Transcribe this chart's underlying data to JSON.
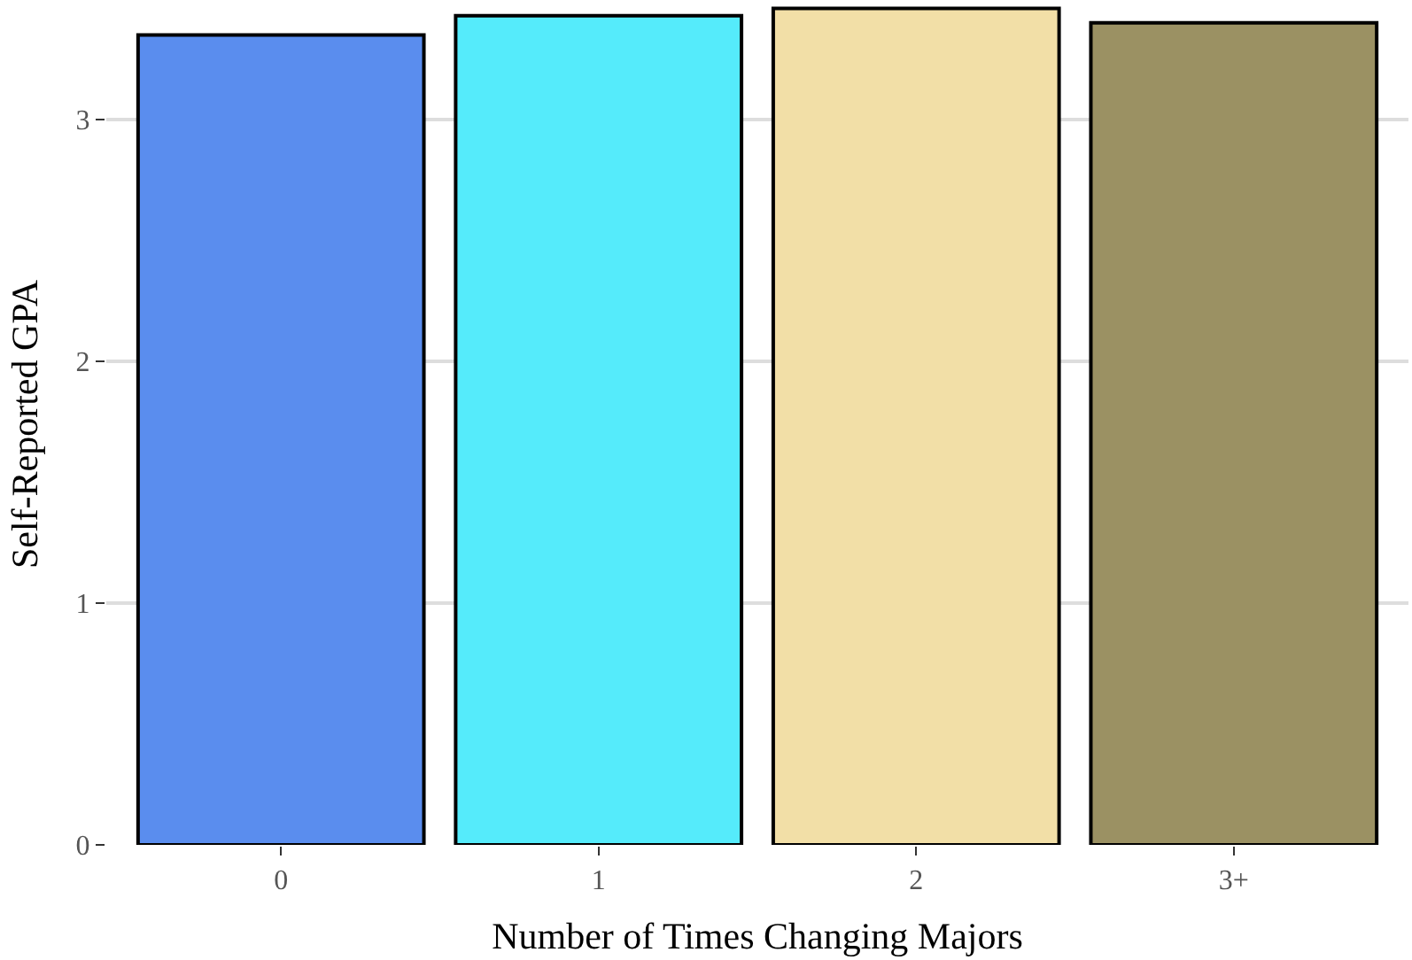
{
  "chart_data": {
    "type": "bar",
    "xlabel": "Number of Times Changing Majors",
    "ylabel": "Self-Reported GPA",
    "categories": [
      "0",
      "1",
      "2",
      "3+"
    ],
    "values": [
      3.35,
      3.43,
      3.46,
      3.4
    ],
    "colors": [
      "#5a8dee",
      "#55ebfb",
      "#f2dfa7",
      "#9b9163"
    ],
    "ylim": [
      0,
      3.48
    ],
    "yticks": [
      0,
      1,
      2,
      3
    ],
    "grid": "y"
  }
}
